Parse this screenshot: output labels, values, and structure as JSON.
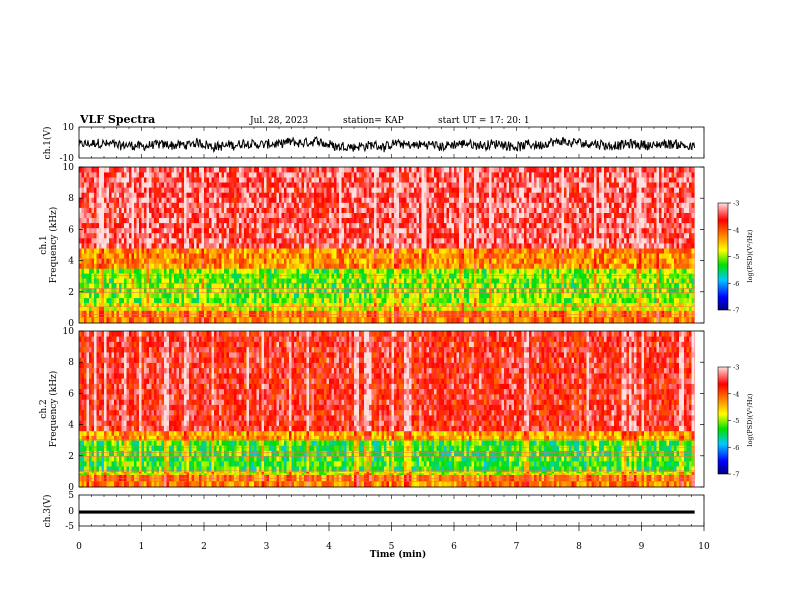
{
  "header": {
    "title": "VLF Spectra",
    "date": "Jul. 28, 2023",
    "station": "station= KAP",
    "start": "start UT =  17: 20: 1"
  },
  "colors": {
    "scale": [
      "#0000c8",
      "#00c8ff",
      "#00e000",
      "#ffff00",
      "#ff8000",
      "#ff0000",
      "#ffffff"
    ],
    "trace": "#000000"
  },
  "chart_data": [
    {
      "type": "line",
      "panel": "ch1-waveform",
      "ylabel": "ch.1(V)",
      "ylim": [
        -10,
        10
      ],
      "yticks": [
        "10",
        "-10"
      ],
      "xlim": [
        0,
        10
      ],
      "series": [
        {
          "x_range": [
            0,
            9.85
          ],
          "y_range": [
            -7,
            5
          ],
          "mean": -1.5
        }
      ]
    },
    {
      "type": "heatmap",
      "panel": "ch1-spectrogram",
      "ylabel": "ch.1\nFrequency (kHz)",
      "ylim": [
        0,
        10
      ],
      "yticks": [
        "10",
        "8",
        "6",
        "4",
        "2",
        "0"
      ],
      "xlim": [
        0,
        10
      ],
      "x_end": 9.85,
      "colorbar": {
        "label": "log(PSD)(V²/Hz)",
        "range": [
          -7,
          -3
        ],
        "ticks": [
          "-3",
          "-4",
          "-5",
          "-6",
          "-7"
        ]
      },
      "bands": [
        {
          "freq": [
            0.0,
            0.8
          ],
          "level": -4.2
        },
        {
          "freq": [
            0.8,
            1.3
          ],
          "level": -4.8
        },
        {
          "freq": [
            1.3,
            3.5
          ],
          "level": -5.1
        },
        {
          "freq": [
            3.5,
            4.8
          ],
          "level": -4.3
        },
        {
          "freq": [
            4.8,
            10.0
          ],
          "level": -3.4
        }
      ]
    },
    {
      "type": "heatmap",
      "panel": "ch2-spectrogram",
      "ylabel": "ch.2\nFrequency (kHz)",
      "ylim": [
        0,
        10
      ],
      "yticks": [
        "10",
        "8",
        "6",
        "4",
        "2",
        "0"
      ],
      "xlim": [
        0,
        10
      ],
      "x_end": 9.85,
      "colorbar": {
        "label": "log(PSD)(V²/Hz)",
        "range": [
          -7,
          -3
        ],
        "ticks": [
          "-3",
          "-4",
          "-5",
          "-6",
          "-7"
        ]
      },
      "bands": [
        {
          "freq": [
            0.0,
            0.8
          ],
          "level": -4.2
        },
        {
          "freq": [
            0.8,
            1.0
          ],
          "level": -4.8
        },
        {
          "freq": [
            1.0,
            3.0
          ],
          "level": -5.3
        },
        {
          "freq": [
            3.0,
            3.6
          ],
          "level": -4.4
        },
        {
          "freq": [
            3.6,
            10.0
          ],
          "level": -3.6
        }
      ]
    },
    {
      "type": "line",
      "panel": "ch3-waveform",
      "ylabel": "ch.3(V)",
      "ylim": [
        -5,
        5
      ],
      "yticks": [
        "5",
        "0",
        "-5"
      ],
      "xlim": [
        0,
        10
      ],
      "xlabel": "Time (min)",
      "xticks": [
        "0",
        "1",
        "2",
        "3",
        "4",
        "5",
        "6",
        "7",
        "8",
        "9",
        "10"
      ],
      "series": [
        {
          "x_range": [
            0,
            9.85
          ],
          "y_range": [
            -1.0,
            0.0
          ]
        }
      ]
    }
  ]
}
